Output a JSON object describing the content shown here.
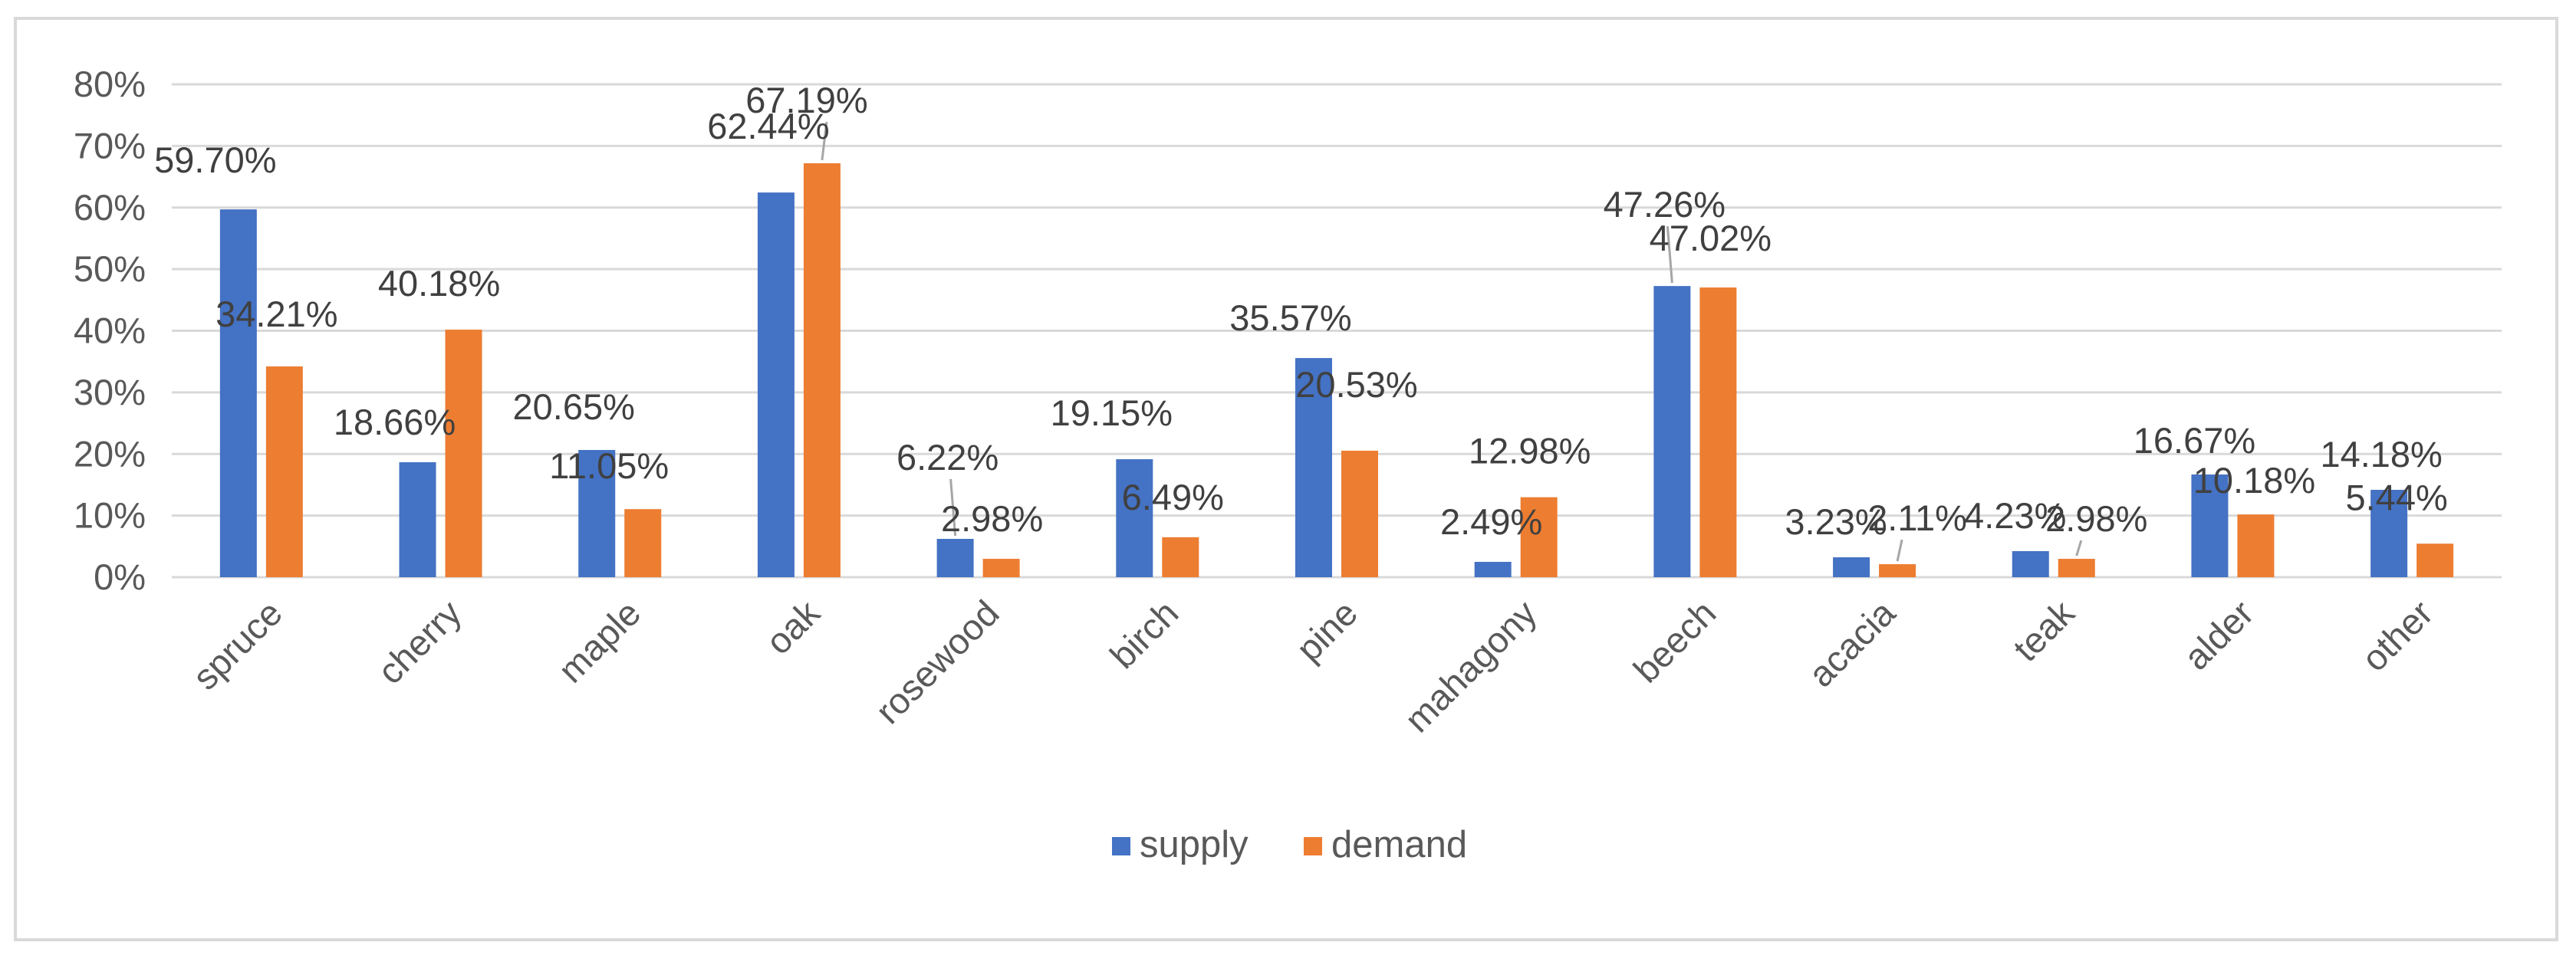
{
  "chart_data": {
    "type": "bar",
    "title": "",
    "xlabel": "",
    "ylabel": "",
    "ylim": [
      0,
      80
    ],
    "y_ticks": [
      "0%",
      "10%",
      "20%",
      "30%",
      "40%",
      "50%",
      "60%",
      "70%",
      "80%"
    ],
    "grid": true,
    "legend_position": "bottom",
    "categories": [
      "spruce",
      "cherry",
      "maple",
      "oak",
      "rosewood",
      "birch",
      "pine",
      "mahagony",
      "beech",
      "acacia",
      "teak",
      "alder",
      "other"
    ],
    "series": [
      {
        "name": "supply",
        "color": "#4472c4",
        "values": [
          59.7,
          18.66,
          20.65,
          62.44,
          6.22,
          19.15,
          35.57,
          2.49,
          47.26,
          3.23,
          4.23,
          16.67,
          14.18
        ],
        "labels": [
          "59.70%",
          "18.66%",
          "20.65%",
          "62.44%",
          "6.22%",
          "19.15%",
          "35.57%",
          "2.49%",
          "47.26%",
          "3.23%",
          "4.23%",
          "16.67%",
          "14.18%"
        ]
      },
      {
        "name": "demand",
        "color": "#ed7d31",
        "values": [
          34.21,
          40.18,
          11.05,
          67.19,
          2.98,
          6.49,
          20.53,
          12.98,
          47.02,
          2.11,
          2.98,
          10.18,
          5.44
        ],
        "labels": [
          "34.21%",
          "40.18%",
          "11.05%",
          "67.19%",
          "2.98%",
          "6.49%",
          "20.53%",
          "12.98%",
          "47.02%",
          "2.11%",
          "2.98%",
          "10.18%",
          "5.44%"
        ]
      }
    ]
  }
}
